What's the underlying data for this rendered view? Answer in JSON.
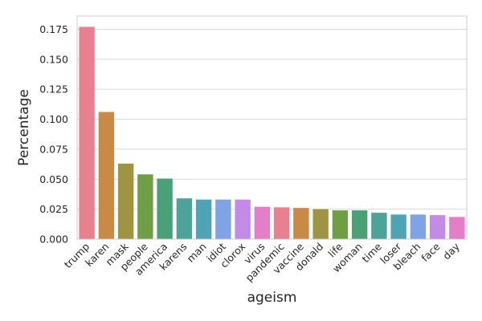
{
  "chart_data": {
    "type": "bar",
    "title": "",
    "xlabel": "ageism",
    "ylabel": "Percentage",
    "categories": [
      "trump",
      "karen",
      "mask",
      "people",
      "america",
      "karens",
      "man",
      "idiot",
      "clorox",
      "virus",
      "pandemic",
      "vaccine",
      "donald",
      "life",
      "woman",
      "time",
      "loser",
      "bleach",
      "face",
      "day"
    ],
    "values": [
      0.177,
      0.106,
      0.063,
      0.054,
      0.0505,
      0.034,
      0.033,
      0.033,
      0.033,
      0.027,
      0.0265,
      0.026,
      0.025,
      0.024,
      0.024,
      0.022,
      0.0205,
      0.0205,
      0.02,
      0.0185
    ],
    "colors": [
      "#e8808f",
      "#c98a46",
      "#9e9442",
      "#6e9f45",
      "#4aa077",
      "#4ba39a",
      "#4ea3b5",
      "#80a3e6",
      "#c48ae8",
      "#e47ec8",
      "#e8808f",
      "#c98a46",
      "#9e9442",
      "#6e9f45",
      "#4aa077",
      "#4ba39a",
      "#4ea3b5",
      "#80a3e6",
      "#c48ae8",
      "#e47ec8"
    ],
    "ylim": [
      0,
      0.186
    ],
    "yticks": [
      "0.000",
      "0.025",
      "0.050",
      "0.075",
      "0.100",
      "0.125",
      "0.150",
      "0.175"
    ],
    "grid": "horizontal",
    "legend": "none"
  }
}
